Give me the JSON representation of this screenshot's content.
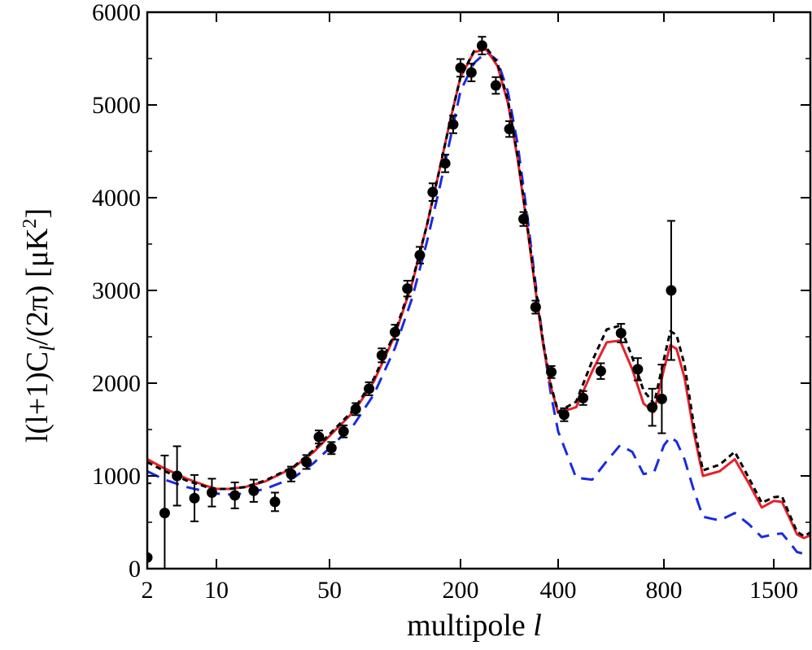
{
  "chart_data": {
    "type": "line",
    "xlabel": "multipole",
    "xlabel_symbol": "l",
    "ylabel_prefix": "l(l+1)C",
    "ylabel_sub": "l",
    "ylabel_mid": "/(2π) [μK",
    "ylabel_sup": "2",
    "ylabel_suffix": "]",
    "x_scale": "piecewise-log",
    "x_ticks": [
      2,
      10,
      50,
      200,
      400,
      800,
      1500
    ],
    "y_ticks": [
      0,
      1000,
      2000,
      3000,
      4000,
      5000,
      6000
    ],
    "ylim": [
      0,
      6000
    ],
    "xlim": [
      2,
      2000
    ],
    "grid": false,
    "legend": "none",
    "data_points": [
      {
        "x": 2,
        "y": 120,
        "err": 800
      },
      {
        "x": 3,
        "y": 600,
        "err": 620
      },
      {
        "x": 4,
        "y": 1000,
        "err": 320
      },
      {
        "x": 6,
        "y": 760,
        "err": 250
      },
      {
        "x": 9,
        "y": 820,
        "err": 150
      },
      {
        "x": 13,
        "y": 790,
        "err": 140
      },
      {
        "x": 17,
        "y": 840,
        "err": 120
      },
      {
        "x": 23,
        "y": 720,
        "err": 100
      },
      {
        "x": 29,
        "y": 1020,
        "err": 80
      },
      {
        "x": 36,
        "y": 1150,
        "err": 75
      },
      {
        "x": 43,
        "y": 1420,
        "err": 70
      },
      {
        "x": 51,
        "y": 1300,
        "err": 65
      },
      {
        "x": 58,
        "y": 1480,
        "err": 65
      },
      {
        "x": 66,
        "y": 1720,
        "err": 65
      },
      {
        "x": 76,
        "y": 1940,
        "err": 70
      },
      {
        "x": 87,
        "y": 2300,
        "err": 75
      },
      {
        "x": 100,
        "y": 2550,
        "err": 80
      },
      {
        "x": 114,
        "y": 3020,
        "err": 85
      },
      {
        "x": 130,
        "y": 3380,
        "err": 90
      },
      {
        "x": 149,
        "y": 4060,
        "err": 95
      },
      {
        "x": 170,
        "y": 4370,
        "err": 95
      },
      {
        "x": 185,
        "y": 4790,
        "err": 95
      },
      {
        "x": 200,
        "y": 5400,
        "err": 95
      },
      {
        "x": 216,
        "y": 5350,
        "err": 95
      },
      {
        "x": 233,
        "y": 5640,
        "err": 95
      },
      {
        "x": 257,
        "y": 5210,
        "err": 90
      },
      {
        "x": 283,
        "y": 4740,
        "err": 85
      },
      {
        "x": 313,
        "y": 3770,
        "err": 75
      },
      {
        "x": 341,
        "y": 2820,
        "err": 70
      },
      {
        "x": 381,
        "y": 2120,
        "err": 65
      },
      {
        "x": 416,
        "y": 1660,
        "err": 70
      },
      {
        "x": 471,
        "y": 1840,
        "err": 75
      },
      {
        "x": 529,
        "y": 2130,
        "err": 85
      },
      {
        "x": 604,
        "y": 2540,
        "err": 100
      },
      {
        "x": 674,
        "y": 2150,
        "err": 120
      },
      {
        "x": 741,
        "y": 1740,
        "err": 200
      },
      {
        "x": 789,
        "y": 1830,
        "err": 370
      },
      {
        "x": 834,
        "y": 3000,
        "err": 750
      }
    ],
    "series": [
      {
        "style": "dashed-black",
        "x": [
          2,
          3,
          5,
          8,
          10,
          12,
          15,
          20,
          30,
          40,
          50,
          65,
          80,
          100,
          120,
          140,
          160,
          180,
          200,
          220,
          240,
          260,
          280,
          300,
          320,
          340,
          360,
          380,
          400,
          450,
          500,
          550,
          600,
          650,
          700,
          750,
          800,
          830,
          860,
          900,
          950,
          1000,
          1100,
          1200,
          1300,
          1400,
          1500,
          1600,
          1700,
          1800,
          1900,
          2000
        ],
        "y": [
          1150,
          1050,
          950,
          880,
          860,
          860,
          880,
          950,
          1100,
          1280,
          1450,
          1720,
          2050,
          2550,
          3100,
          3700,
          4300,
          4850,
          5300,
          5580,
          5620,
          5450,
          5050,
          4450,
          3750,
          3050,
          2430,
          1980,
          1690,
          1800,
          2240,
          2580,
          2620,
          2280,
          1920,
          1780,
          2260,
          2560,
          2520,
          2200,
          1540,
          1060,
          1120,
          1260,
          980,
          710,
          770,
          780,
          580,
          400,
          350,
          390
        ]
      },
      {
        "style": "solid-red",
        "x": [
          2,
          3,
          5,
          8,
          10,
          12,
          15,
          20,
          30,
          40,
          50,
          65,
          80,
          100,
          120,
          140,
          160,
          180,
          200,
          220,
          240,
          260,
          280,
          300,
          320,
          340,
          360,
          380,
          400,
          450,
          500,
          550,
          600,
          650,
          700,
          750,
          800,
          830,
          860,
          900,
          950,
          1000,
          1100,
          1200,
          1300,
          1400,
          1500,
          1600,
          1700,
          1800,
          1900,
          2000
        ],
        "y": [
          1180,
          1080,
          970,
          890,
          860,
          860,
          880,
          940,
          1090,
          1260,
          1430,
          1700,
          2020,
          2520,
          3080,
          3700,
          4300,
          4850,
          5300,
          5570,
          5600,
          5420,
          5020,
          4420,
          3720,
          3020,
          2400,
          1960,
          1680,
          1740,
          2130,
          2440,
          2460,
          2150,
          1780,
          1690,
          2150,
          2410,
          2370,
          2060,
          1460,
          1000,
          1050,
          1180,
          920,
          660,
          730,
          720,
          540,
          370,
          330,
          360
        ]
      },
      {
        "style": "dashed-blue",
        "x": [
          2,
          3,
          5,
          8,
          10,
          12,
          15,
          20,
          30,
          40,
          50,
          65,
          80,
          100,
          120,
          140,
          160,
          180,
          200,
          220,
          240,
          260,
          280,
          300,
          320,
          340,
          360,
          380,
          400,
          450,
          500,
          550,
          600,
          650,
          700,
          750,
          800,
          830,
          860,
          900,
          950,
          1000,
          1100,
          1200,
          1300,
          1400,
          1500,
          1600,
          1700,
          1800,
          1900,
          2000
        ],
        "y": [
          1050,
          960,
          880,
          830,
          810,
          800,
          810,
          860,
          980,
          1140,
          1300,
          1560,
          1880,
          2380,
          2920,
          3520,
          4100,
          4650,
          5150,
          5450,
          5570,
          5480,
          5140,
          4580,
          3850,
          3100,
          2430,
          1880,
          1480,
          980,
          960,
          1160,
          1330,
          1260,
          1020,
          1040,
          1330,
          1420,
          1370,
          1180,
          840,
          560,
          520,
          600,
          480,
          340,
          370,
          380,
          280,
          180,
          160,
          180
        ]
      }
    ]
  }
}
